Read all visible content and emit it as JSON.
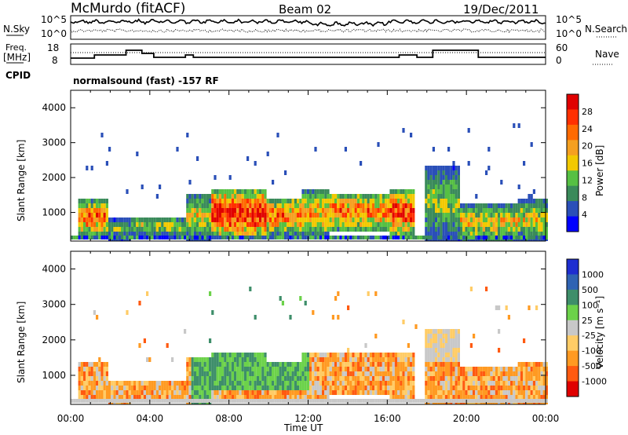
{
  "header": {
    "station": "McMurdo (fitACF)",
    "beam": "Beam 02",
    "date": "19/Dec/2011"
  },
  "top_panels": {
    "nsky_label": "N.Sky",
    "nsky_ticks": [
      "10^5",
      "10^0"
    ],
    "nsearch_label": "N.Search",
    "nsearch_ticks": [
      "10^5",
      "10^0"
    ],
    "freq_label": "Freq.",
    "freq_unit": "[MHz]",
    "freq_ticks": [
      "18",
      "8"
    ],
    "nave_label": "Nave",
    "nave_ticks": [
      "60",
      "0"
    ],
    "cpid_label": "CPID",
    "mode_text": "normalsound (fast) -157 RF"
  },
  "colors": {
    "power_scale": [
      "#0000ff",
      "#2a4fb8",
      "#3a8a5a",
      "#56c043",
      "#f2c900",
      "#f5a020",
      "#ff6a00",
      "#ff3000",
      "#e00000"
    ],
    "velocity_scale": [
      "#1e2ed0",
      "#2f63b3",
      "#3e8e6a",
      "#6cd24a",
      "#c8c8c8",
      "#ffcc66",
      "#ff9a22",
      "#ff5a10",
      "#e00000"
    ]
  },
  "chart_data": [
    {
      "type": "heatmap",
      "name": "power",
      "ylabel": "Slant Range [km]",
      "xlabel": "",
      "yticks": [
        "1000",
        "2000",
        "3000",
        "4000"
      ],
      "ylim": [
        180,
        4500
      ],
      "xlim_hours": [
        0,
        24
      ],
      "colorbar_label": "Power [dB]",
      "colorbar_ticks": [
        "4",
        "8",
        "12",
        "16",
        "20",
        "24",
        "28"
      ],
      "colorbar_range": [
        0,
        30
      ]
    },
    {
      "type": "heatmap",
      "name": "velocity",
      "ylabel": "Slant Range [km]",
      "xlabel": "Time UT",
      "xticks": [
        "00:00",
        "04:00",
        "08:00",
        "12:00",
        "16:00",
        "20:00",
        "00:00"
      ],
      "yticks": [
        "1000",
        "2000",
        "3000",
        "4000"
      ],
      "ylim": [
        180,
        4500
      ],
      "xlim_hours": [
        0,
        24
      ],
      "colorbar_label": "Velocity [m s⁻¹]",
      "colorbar_ticks": [
        "1000",
        "500",
        "100",
        "25",
        "-25",
        "-100",
        "-500",
        "-1000"
      ]
    }
  ]
}
